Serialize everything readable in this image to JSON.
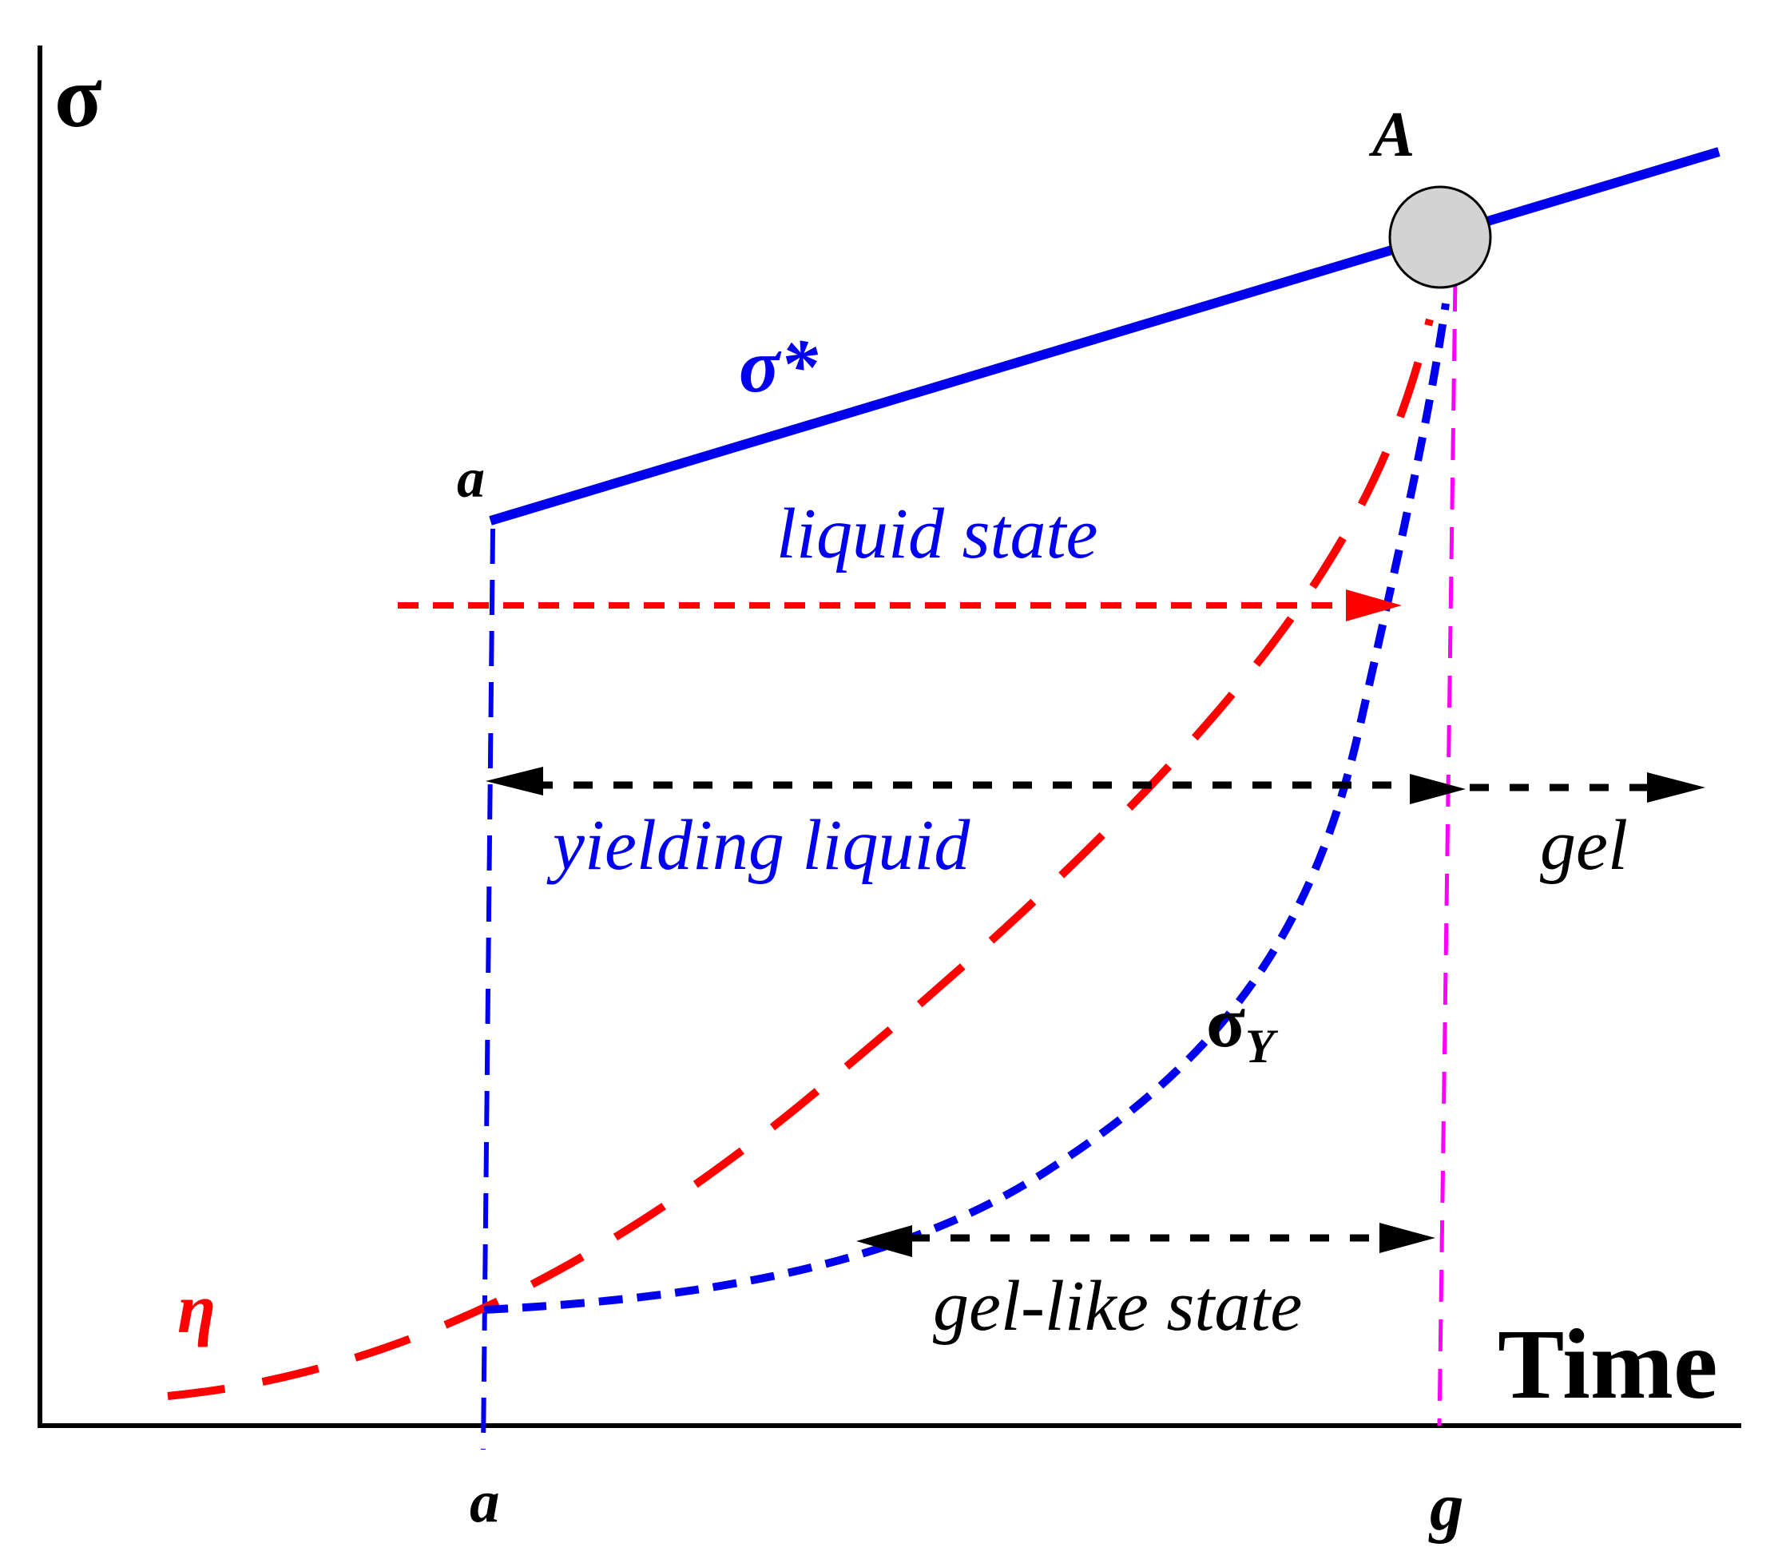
{
  "axes": {
    "y_label": "σ",
    "x_label": "Time"
  },
  "ticks": {
    "a": "a",
    "g": "g"
  },
  "labels": {
    "point_A": "A",
    "sigma_star": "σ*",
    "a_upper": "a",
    "liquid_state": "liquid state",
    "yielding_liquid": "yielding liquid",
    "gel": "gel",
    "sigma_y_main": "σ",
    "sigma_y_sub": "Y",
    "gel_like_state": "gel-like state",
    "eta": "η"
  },
  "colors": {
    "axis": "#000000",
    "sigma_star_line": "#0000ee",
    "sigma_y_curve": "#0000ee",
    "eta_curve": "#ff0000",
    "gel_point_line": "#ff00ff",
    "arrows": "#000000",
    "point_fill": "#d3d3d3"
  }
}
